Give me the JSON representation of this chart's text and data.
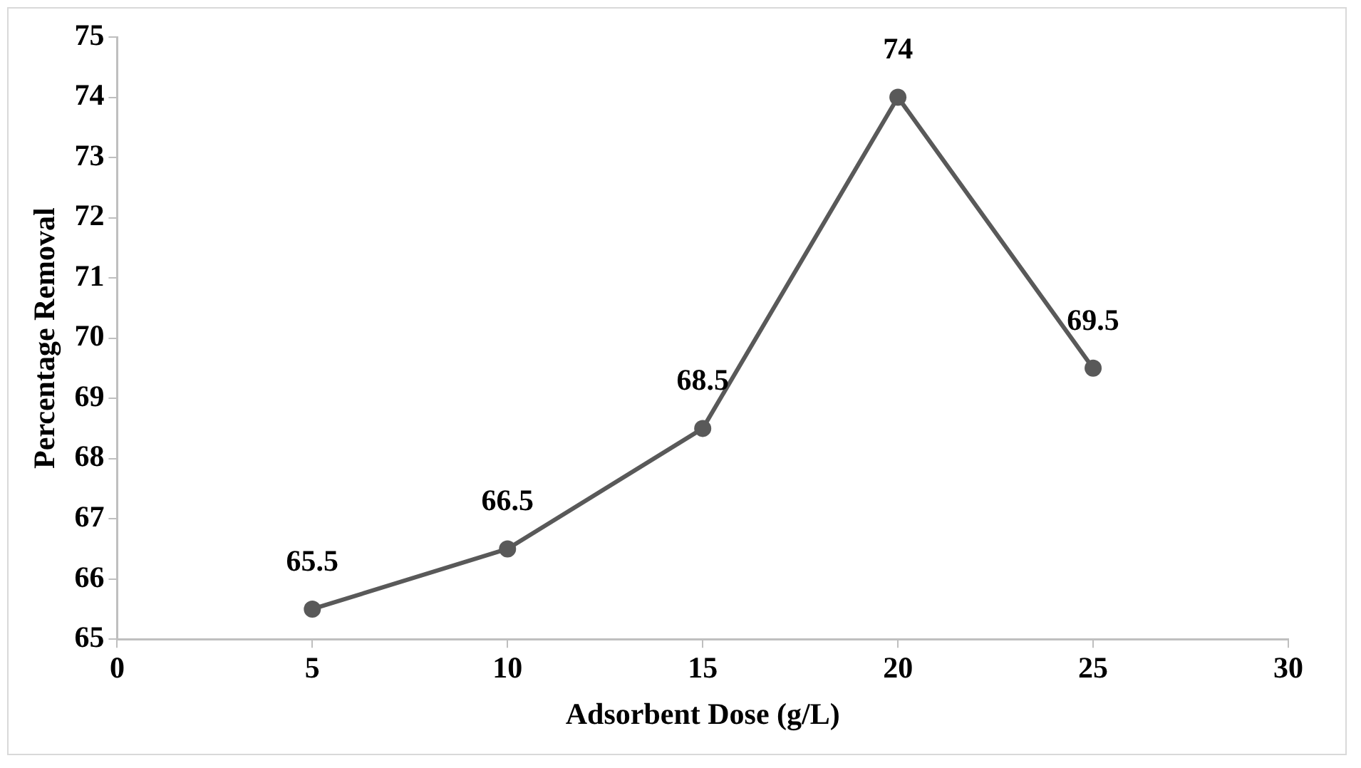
{
  "chart_data": {
    "type": "line",
    "xlabel": "Adsorbent Dose (g/L)",
    "ylabel": "Percentage Removal",
    "x": [
      5,
      10,
      15,
      20,
      25
    ],
    "series": [
      {
        "color": "#595959",
        "values": [
          65.5,
          66.5,
          68.5,
          74,
          69.5
        ]
      }
    ],
    "xlim": [
      0,
      30
    ],
    "xticks": [
      0,
      5,
      10,
      15,
      20,
      25,
      30
    ],
    "ylim": [
      65,
      75
    ],
    "yticks": [
      65,
      66,
      67,
      68,
      69,
      70,
      71,
      72,
      73,
      74,
      75
    ],
    "grid": false,
    "legend": false,
    "marker": "circle",
    "line_style": "solid",
    "data_labels": true
  }
}
